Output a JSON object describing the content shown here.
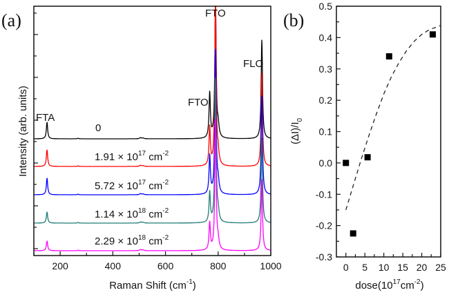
{
  "chart_data": [
    {
      "panel": "(a)",
      "type": "line",
      "xlabel": "Raman Shift (cm",
      "xlabel_sup": "-1",
      "xlabel_end": ")",
      "ylabel": "Intensity (arb. units)",
      "xlim": [
        100,
        1000
      ],
      "xticks": [
        200,
        400,
        600,
        800,
        1000
      ],
      "grid": false,
      "peak_labels": [
        {
          "text": "FTA",
          "x": 150
        },
        {
          "text": "FTO",
          "x": 768
        },
        {
          "text": "FTO",
          "x": 790
        },
        {
          "text": "FLO",
          "x": 966
        }
      ],
      "series": [
        {
          "name": "0",
          "label_main": "0",
          "label_exp": "",
          "label_unit": "",
          "label_unit_exp": "",
          "color": "#000000",
          "peaks": {
            "150": 0.12,
            "768": 0.33,
            "790": 1.0,
            "800": 0.08,
            "966": 0.72
          }
        },
        {
          "name": "1.91 × 10^17 cm^-2",
          "label_main": "1.91 × 10",
          "label_exp": "17",
          "label_unit": " cm",
          "label_unit_exp": "-2",
          "color": "#ff0000",
          "peaks": {
            "150": 0.12,
            "768": 0.28,
            "790": 1.25,
            "800": 0.08,
            "966": 0.68
          }
        },
        {
          "name": "5.72 × 10^17 cm^-2",
          "label_main": "5.72 × 10",
          "label_exp": "17",
          "label_unit": " cm",
          "label_unit_exp": "-2",
          "color": "#0000ff",
          "peaks": {
            "150": 0.12,
            "768": 0.28,
            "790": 1.05,
            "800": 0.08,
            "966": 0.72
          }
        },
        {
          "name": "1.14 × 10^18 cm^-2",
          "label_main": "1.14 × 10",
          "label_exp": "18",
          "label_unit": " cm",
          "label_unit_exp": "-2",
          "color": "#1e7b72",
          "peaks": {
            "150": 0.08,
            "768": 0.22,
            "790": 1.05,
            "800": 0.07,
            "966": 0.62
          }
        },
        {
          "name": "2.29 × 10^18 cm^-2",
          "label_main": "2.29 × 10",
          "label_exp": "18",
          "label_unit": " cm",
          "label_unit_exp": "-2",
          "color": "#ff00ff",
          "peaks": {
            "150": 0.07,
            "768": 0.2,
            "790": 0.95,
            "800": 0.06,
            "966": 0.52
          }
        }
      ]
    },
    {
      "panel": "(b)",
      "type": "scatter",
      "xlabel": "dose(10",
      "xlabel_sup1": "17",
      "xlabel_mid": "cm",
      "xlabel_sup2": "-2",
      "xlabel_end": ")",
      "ylabel": "(ΔI)/I",
      "ylabel_sub": "0",
      "xlim": [
        -2.5,
        25
      ],
      "ylim": [
        -0.3,
        0.5
      ],
      "xticks": [
        0,
        5,
        10,
        15,
        20,
        25
      ],
      "yticks": [
        -0.3,
        -0.2,
        -0.1,
        0.0,
        0.1,
        0.2,
        0.3,
        0.4,
        0.5
      ],
      "ytick_labels": [
        "-0.3",
        "-0.2",
        "-0.1",
        "0.0",
        "0.1",
        "0.2",
        "0.3",
        "0.4",
        "0.5"
      ],
      "grid": false,
      "points": [
        {
          "x": 0,
          "y": 0.0
        },
        {
          "x": 1.91,
          "y": -0.225
        },
        {
          "x": 5.72,
          "y": 0.018
        },
        {
          "x": 11.4,
          "y": 0.34
        },
        {
          "x": 22.9,
          "y": 0.41
        }
      ],
      "fit_curve": {
        "style": "dashed",
        "x": [
          0,
          2,
          4,
          6,
          8,
          10,
          12,
          14,
          16,
          18,
          20,
          22,
          24.9
        ],
        "y": [
          -0.15,
          -0.07,
          0.01,
          0.085,
          0.155,
          0.22,
          0.275,
          0.32,
          0.358,
          0.388,
          0.41,
          0.425,
          0.438
        ]
      }
    }
  ]
}
